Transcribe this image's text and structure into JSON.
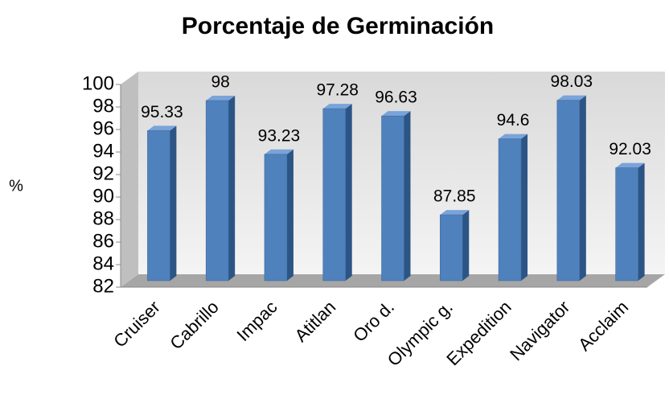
{
  "chart_data": {
    "type": "bar3d",
    "title": "Porcentaje de Germinación",
    "y_label": "%",
    "categories": [
      "Cruiser",
      "Cabrillo",
      "Impac",
      "Atitlan",
      "Oro d.",
      "Olympic g.",
      "Expedition",
      "Navigator",
      "Acclaim"
    ],
    "values": [
      95.33,
      98,
      93.23,
      97.28,
      96.63,
      87.85,
      94.6,
      98.03,
      92.03
    ],
    "color": "#4f81bd",
    "ylim": [
      82,
      100
    ],
    "yticks": [
      82,
      84,
      86,
      88,
      90,
      92,
      94,
      96,
      98,
      100
    ]
  }
}
